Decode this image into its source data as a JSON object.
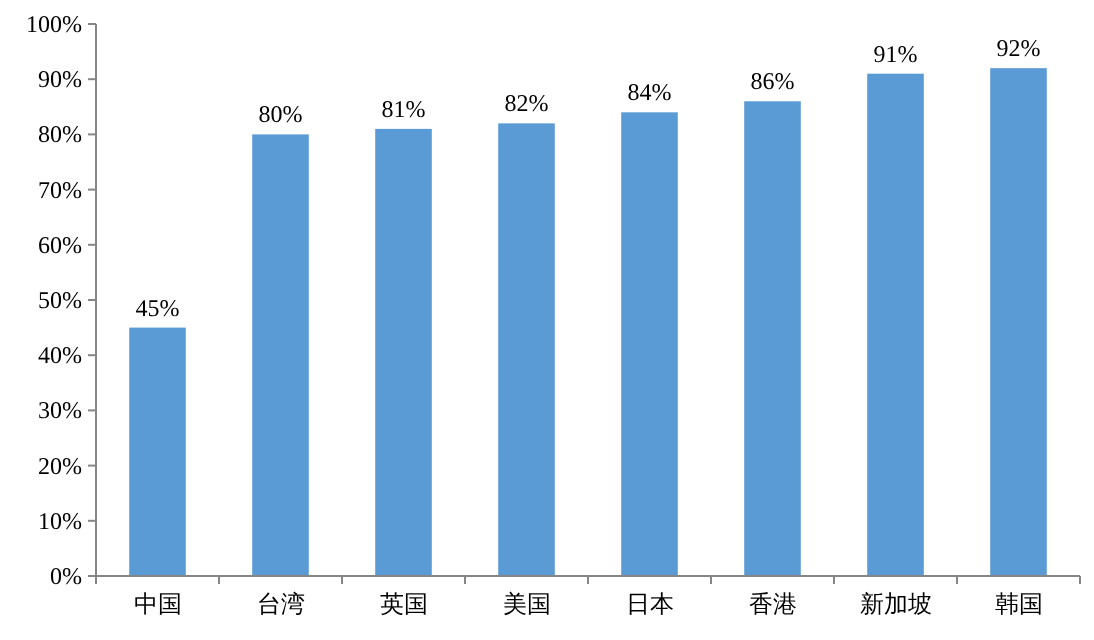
{
  "chart_data": {
    "type": "bar",
    "categories": [
      "中国",
      "台湾",
      "英国",
      "美国",
      "日本",
      "香港",
      "新加坡",
      "韩国"
    ],
    "values": [
      45,
      80,
      81,
      82,
      84,
      86,
      91,
      92
    ],
    "value_labels": [
      "45%",
      "80%",
      "81%",
      "82%",
      "84%",
      "86%",
      "91%",
      "92%"
    ],
    "color": "#5b9bd5",
    "ylim": [
      0,
      100
    ],
    "yticks": [
      {
        "value": 0,
        "label": "0%"
      },
      {
        "value": 10,
        "label": "10%"
      },
      {
        "value": 20,
        "label": "20%"
      },
      {
        "value": 30,
        "label": "30%"
      },
      {
        "value": 40,
        "label": "40%"
      },
      {
        "value": 50,
        "label": "50%"
      },
      {
        "value": 60,
        "label": "60%"
      },
      {
        "value": 70,
        "label": "70%"
      },
      {
        "value": 80,
        "label": "80%"
      },
      {
        "value": 90,
        "label": "90%"
      },
      {
        "value": 100,
        "label": "100%"
      }
    ],
    "grid": false
  }
}
